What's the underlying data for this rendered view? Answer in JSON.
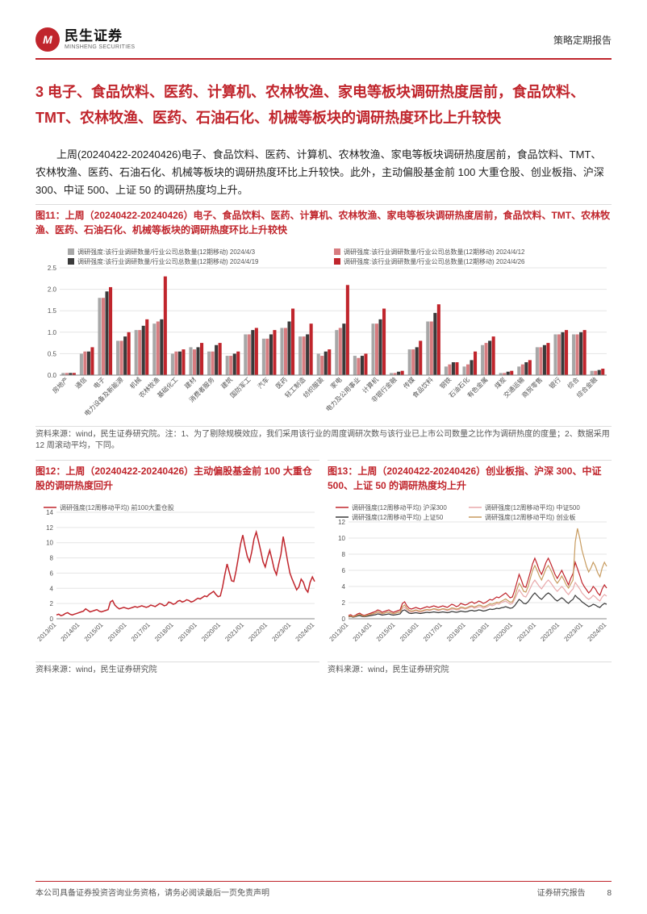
{
  "header": {
    "logo_cn": "民生证券",
    "logo_en": "MINSHENG SECURITIES",
    "report_type": "策略定期报告"
  },
  "section": {
    "title": "3 电子、食品饮料、医药、计算机、农林牧渔、家电等板块调研热度居前，食品饮料、TMT、农林牧渔、医药、石油石化、机械等板块的调研热度环比上升较快",
    "body": "上周(20240422-20240426)电子、食品饮料、医药、计算机、农林牧渔、家电等板块调研热度居前，食品饮料、TMT、农林牧渔、医药、石油石化、机械等板块的调研热度环比上升较快。此外，主动偏股基金前 100 大重仓股、创业板指、沪深 300、中证 500、上证 50 的调研热度均上升。"
  },
  "fig11": {
    "title": "图11：上周（20240422-20240426）电子、食品饮料、医药、计算机、农林牧渔、家电等板块调研热度居前，食品饮料、TMT、农林牧渔、医药、石油石化、机械等板块的调研热度环比上升较快",
    "type": "grouped-bar",
    "legend": [
      {
        "label": "调研强度:该行业调研数量/行业公司总数量(12期移动) 2024/4/3",
        "color": "#a7a7a7"
      },
      {
        "label": "调研强度:该行业调研数量/行业公司总数量(12期移动) 2024/4/12",
        "color": "#d77c80"
      },
      {
        "label": "调研强度:该行业调研数量/行业公司总数量(12期移动) 2024/4/19",
        "color": "#3a3a3a"
      },
      {
        "label": "调研强度:该行业调研数量/行业公司总数量(12期移动) 2024/4/26",
        "color": "#c0252c"
      }
    ],
    "categories": [
      "房地产",
      "通信",
      "电子",
      "电力设备及新能源",
      "机械",
      "农林牧渔",
      "基础化工",
      "建材",
      "消费者服务",
      "建筑",
      "国防军工",
      "汽车",
      "医药",
      "轻工制造",
      "纺织服装",
      "家电",
      "电力及公用事业",
      "计算机",
      "非银行金融",
      "传媒",
      "食品饮料",
      "钢铁",
      "石油石化",
      "有色金属",
      "煤炭",
      "交通运输",
      "商贸零售",
      "银行",
      "综合",
      "综合金融"
    ],
    "series": [
      [
        0.05,
        0.5,
        1.8,
        0.8,
        1.05,
        1.2,
        0.5,
        0.65,
        0.55,
        0.45,
        0.95,
        0.85,
        1.1,
        0.9,
        0.5,
        1.05,
        0.45,
        1.2,
        0.05,
        0.6,
        1.25,
        0.2,
        0.2,
        0.7,
        0.05,
        0.2,
        0.65,
        0.95,
        0.95,
        0.1
      ],
      [
        0.05,
        0.55,
        1.8,
        0.8,
        1.05,
        1.25,
        0.55,
        0.6,
        0.55,
        0.45,
        0.95,
        0.85,
        1.1,
        0.9,
        0.45,
        1.1,
        0.4,
        1.2,
        0.05,
        0.6,
        1.25,
        0.25,
        0.25,
        0.75,
        0.05,
        0.25,
        0.65,
        0.95,
        0.95,
        0.1
      ],
      [
        0.05,
        0.55,
        1.95,
        0.9,
        1.15,
        1.3,
        0.55,
        0.65,
        0.7,
        0.5,
        1.05,
        0.95,
        1.25,
        0.95,
        0.55,
        1.2,
        0.45,
        1.3,
        0.08,
        0.65,
        1.45,
        0.3,
        0.35,
        0.8,
        0.08,
        0.3,
        0.7,
        1.0,
        1.0,
        0.12
      ],
      [
        0.05,
        0.65,
        2.05,
        1.0,
        1.3,
        2.3,
        0.6,
        0.75,
        0.75,
        0.55,
        1.1,
        1.05,
        1.55,
        1.2,
        0.6,
        2.1,
        0.5,
        1.55,
        0.1,
        0.8,
        1.65,
        0.3,
        0.55,
        0.9,
        0.1,
        0.35,
        0.75,
        1.05,
        1.05,
        0.15
      ]
    ],
    "ylim": [
      0,
      2.5
    ],
    "yticks": [
      0,
      0.5,
      1.0,
      1.5,
      2.0,
      2.5
    ],
    "grid_color": "#e5e5e5",
    "background_color": "#ffffff",
    "axis_fontsize": 8,
    "legend_fontsize": 8,
    "bar_group_width": 0.8,
    "source": "资料来源：wind，民生证券研究院。注：1、为了剔除规模效应，我们采用该行业的周度调研次数与该行业已上市公司数量之比作为调研热度的度量；2、数据采用 12 周滚动平均，下同。"
  },
  "fig12": {
    "title": "图12：上周（20240422-20240426）主动偏股基金前 100 大重仓股的调研热度回升",
    "type": "line",
    "legend": [
      {
        "label": "调研强度(12周移动平均) 前100大重仓股",
        "color": "#c0252c"
      }
    ],
    "xticks": [
      "2013/01",
      "2014/01",
      "2015/01",
      "2016/01",
      "2017/01",
      "2018/01",
      "2019/01",
      "2020/01",
      "2021/01",
      "2022/01",
      "2023/01",
      "2024/01"
    ],
    "ylim": [
      0,
      14
    ],
    "yticks": [
      0,
      2,
      4,
      6,
      8,
      10,
      12,
      14
    ],
    "series": [
      {
        "color": "#c0252c",
        "width": 1.5,
        "values": [
          0.5,
          0.6,
          0.4,
          0.5,
          0.7,
          0.8,
          0.6,
          0.5,
          0.6,
          0.7,
          0.8,
          0.9,
          1.0,
          1.3,
          1.1,
          0.9,
          1.0,
          1.1,
          1.2,
          1.0,
          0.9,
          1.0,
          1.1,
          1.2,
          2.2,
          2.4,
          1.8,
          1.5,
          1.3,
          1.4,
          1.5,
          1.4,
          1.3,
          1.4,
          1.5,
          1.6,
          1.5,
          1.6,
          1.7,
          1.6,
          1.5,
          1.6,
          1.8,
          1.7,
          1.6,
          1.8,
          2.0,
          1.9,
          1.7,
          1.8,
          2.2,
          2.1,
          1.9,
          2.0,
          2.3,
          2.4,
          2.2,
          2.3,
          2.5,
          2.4,
          2.2,
          2.3,
          2.5,
          2.7,
          2.6,
          2.8,
          3.0,
          2.9,
          3.2,
          3.4,
          3.6,
          3.2,
          2.9,
          3.0,
          4.2,
          5.8,
          7.2,
          6.1,
          5.0,
          4.9,
          6.3,
          8.0,
          9.8,
          11.0,
          9.5,
          8.2,
          7.5,
          8.8,
          10.5,
          11.4,
          10.2,
          8.9,
          7.5,
          6.8,
          8.0,
          9.0,
          7.8,
          6.5,
          5.8,
          7.2,
          8.5,
          10.8,
          9.2,
          7.5,
          6.0,
          5.2,
          4.5,
          3.8,
          4.2,
          5.2,
          4.8,
          3.9,
          3.5,
          4.8,
          5.5,
          4.9
        ]
      }
    ],
    "grid_color": "#e5e5e5",
    "source": "资料来源：wind，民生证券研究院"
  },
  "fig13": {
    "title": "图13：上周（20240422-20240426）创业板指、沪深 300、中证 500、上证 50 的调研热度均上升",
    "type": "line",
    "legend": [
      {
        "label": "调研强度(12周移动平均) 沪深300",
        "color": "#c0252c"
      },
      {
        "label": "调研强度(12周移动平均) 中证500",
        "color": "#e8a9ab"
      },
      {
        "label": "调研强度(12周移动平均) 上证50",
        "color": "#3a3a3a"
      },
      {
        "label": "调研强度(12周移动平均) 创业板",
        "color": "#c79b5f"
      }
    ],
    "xticks": [
      "2013/01",
      "2014/01",
      "2015/01",
      "2016/01",
      "2017/01",
      "2018/01",
      "2019/01",
      "2020/01",
      "2021/01",
      "2022/01",
      "2023/01",
      "2024/01"
    ],
    "ylim": [
      0,
      12
    ],
    "yticks": [
      0,
      2,
      4,
      6,
      8,
      10,
      12
    ],
    "series": [
      {
        "color": "#c0252c",
        "width": 1.2,
        "values": [
          0.4,
          0.5,
          0.3,
          0.4,
          0.6,
          0.7,
          0.5,
          0.4,
          0.5,
          0.6,
          0.7,
          0.8,
          0.9,
          1.1,
          1.0,
          0.8,
          0.9,
          1.0,
          1.1,
          0.9,
          0.8,
          0.9,
          1.0,
          1.1,
          1.9,
          2.1,
          1.6,
          1.3,
          1.2,
          1.3,
          1.4,
          1.3,
          1.2,
          1.3,
          1.4,
          1.5,
          1.4,
          1.5,
          1.6,
          1.5,
          1.4,
          1.5,
          1.6,
          1.5,
          1.4,
          1.6,
          1.8,
          1.7,
          1.5,
          1.6,
          1.9,
          1.8,
          1.7,
          1.8,
          2.0,
          2.1,
          1.9,
          2.0,
          2.2,
          2.1,
          1.9,
          2.0,
          2.2,
          2.4,
          2.3,
          2.5,
          2.7,
          2.6,
          2.8,
          3.0,
          3.2,
          2.9,
          2.6,
          2.7,
          3.5,
          4.5,
          5.5,
          4.8,
          4.0,
          3.9,
          4.8,
          5.8,
          6.8,
          7.5,
          6.8,
          6.0,
          5.5,
          6.2,
          7.0,
          7.5,
          6.9,
          6.2,
          5.5,
          5.0,
          5.5,
          6.0,
          5.4,
          4.8,
          4.2,
          5.0,
          5.6,
          7.0,
          6.2,
          5.4,
          4.5,
          4.0,
          3.6,
          3.2,
          3.5,
          4.0,
          3.7,
          3.2,
          2.9,
          3.7,
          4.2,
          3.8
        ]
      },
      {
        "color": "#e8a9ab",
        "width": 1.2,
        "values": [
          0.2,
          0.3,
          0.2,
          0.3,
          0.4,
          0.5,
          0.4,
          0.3,
          0.4,
          0.5,
          0.5,
          0.6,
          0.7,
          0.8,
          0.7,
          0.6,
          0.7,
          0.8,
          0.8,
          0.7,
          0.6,
          0.7,
          0.8,
          0.8,
          1.3,
          1.4,
          1.1,
          0.9,
          0.8,
          0.9,
          1.0,
          0.9,
          0.8,
          0.9,
          1.0,
          1.1,
          1.0,
          1.1,
          1.2,
          1.1,
          1.0,
          1.1,
          1.2,
          1.1,
          1.0,
          1.1,
          1.2,
          1.2,
          1.1,
          1.1,
          1.3,
          1.3,
          1.2,
          1.3,
          1.4,
          1.5,
          1.3,
          1.4,
          1.5,
          1.5,
          1.3,
          1.4,
          1.5,
          1.7,
          1.6,
          1.7,
          1.9,
          1.8,
          2.0,
          2.1,
          2.2,
          2.0,
          1.8,
          1.9,
          2.4,
          3.0,
          3.6,
          3.2,
          2.8,
          2.7,
          3.2,
          3.8,
          4.4,
          4.8,
          4.4,
          4.0,
          3.7,
          4.1,
          4.5,
          4.8,
          4.5,
          4.1,
          3.7,
          3.4,
          3.7,
          4.0,
          3.7,
          3.3,
          3.0,
          3.4,
          3.7,
          4.5,
          4.1,
          3.7,
          3.2,
          2.9,
          2.6,
          2.4,
          2.6,
          2.9,
          2.7,
          2.4,
          2.2,
          2.7,
          3.0,
          2.8
        ]
      },
      {
        "color": "#3a3a3a",
        "width": 1.2,
        "values": [
          0.25,
          0.3,
          0.2,
          0.25,
          0.35,
          0.4,
          0.3,
          0.25,
          0.3,
          0.35,
          0.4,
          0.45,
          0.5,
          0.6,
          0.55,
          0.45,
          0.5,
          0.55,
          0.6,
          0.5,
          0.45,
          0.5,
          0.55,
          0.6,
          1.0,
          1.1,
          0.9,
          0.7,
          0.65,
          0.7,
          0.75,
          0.7,
          0.65,
          0.7,
          0.75,
          0.8,
          0.75,
          0.8,
          0.85,
          0.8,
          0.75,
          0.8,
          0.85,
          0.8,
          0.75,
          0.8,
          0.9,
          0.85,
          0.8,
          0.85,
          0.95,
          0.9,
          0.85,
          0.9,
          1.0,
          1.05,
          0.95,
          1.0,
          1.1,
          1.05,
          0.95,
          1.0,
          1.1,
          1.2,
          1.15,
          1.2,
          1.3,
          1.25,
          1.35,
          1.4,
          1.5,
          1.4,
          1.3,
          1.35,
          1.6,
          2.0,
          2.4,
          2.2,
          1.9,
          1.85,
          2.1,
          2.5,
          2.9,
          3.2,
          2.9,
          2.6,
          2.4,
          2.7,
          3.0,
          3.2,
          3.0,
          2.7,
          2.4,
          2.2,
          2.4,
          2.6,
          2.4,
          2.1,
          1.9,
          2.2,
          2.4,
          2.9,
          2.6,
          2.4,
          2.1,
          1.9,
          1.7,
          1.5,
          1.6,
          1.8,
          1.7,
          1.5,
          1.4,
          1.7,
          1.9,
          1.8
        ]
      },
      {
        "color": "#c79b5f",
        "width": 1.2,
        "values": [
          0.3,
          0.35,
          0.25,
          0.3,
          0.45,
          0.55,
          0.4,
          0.3,
          0.4,
          0.5,
          0.55,
          0.65,
          0.7,
          0.9,
          0.8,
          0.65,
          0.7,
          0.8,
          0.85,
          0.7,
          0.65,
          0.7,
          0.8,
          0.85,
          1.5,
          1.7,
          1.3,
          1.05,
          0.95,
          1.0,
          1.1,
          1.0,
          0.95,
          1.0,
          1.1,
          1.15,
          1.1,
          1.15,
          1.25,
          1.2,
          1.1,
          1.15,
          1.25,
          1.2,
          1.1,
          1.2,
          1.35,
          1.3,
          1.2,
          1.25,
          1.45,
          1.4,
          1.3,
          1.4,
          1.55,
          1.6,
          1.45,
          1.55,
          1.7,
          1.65,
          1.5,
          1.55,
          1.7,
          1.85,
          1.8,
          1.9,
          2.05,
          2.0,
          2.15,
          2.3,
          2.45,
          2.25,
          2.05,
          2.1,
          2.7,
          3.6,
          4.4,
          4.0,
          3.4,
          3.3,
          4.0,
          5.0,
          6.0,
          6.6,
          6.0,
          5.3,
          4.8,
          5.5,
          6.2,
          6.6,
          6.1,
          5.5,
          4.8,
          4.4,
          4.8,
          5.3,
          4.8,
          4.2,
          3.8,
          4.3,
          4.8,
          9.5,
          11.2,
          10.0,
          8.5,
          7.5,
          6.5,
          5.8,
          6.3,
          7.0,
          6.5,
          5.7,
          5.2,
          6.3,
          7.0,
          6.5
        ]
      }
    ],
    "grid_color": "#e5e5e5",
    "source": "资料来源：wind，民生证券研究院"
  },
  "footer": {
    "left": "本公司具备证券投资咨询业务资格，请务必阅读最后一页免责声明",
    "right": "证券研究报告",
    "page": "8"
  }
}
